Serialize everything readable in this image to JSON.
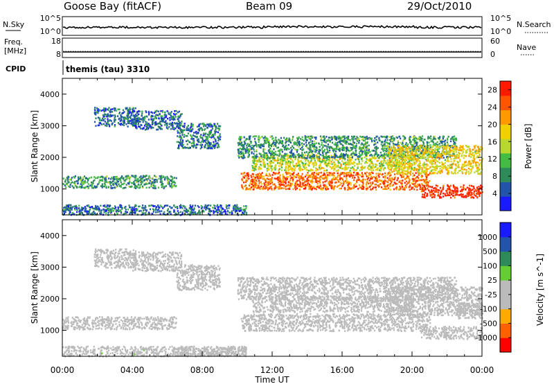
{
  "header": {
    "title": "Goose Bay (fitACF)",
    "beam": "Beam 09",
    "date": "29/Oct/2010"
  },
  "noise_panel": {
    "left_label": "N.Sky",
    "right_label": "N.Search",
    "left_ticks": [
      "10^5",
      "10^0"
    ],
    "right_ticks": [
      "10^5",
      "10^0"
    ]
  },
  "freq_panel": {
    "label_line1": "Freq.",
    "label_line2": "[MHz]",
    "left_ticks": [
      "18",
      "8"
    ],
    "right_label": "Nave",
    "right_ticks": [
      "60",
      "0"
    ]
  },
  "cpid": {
    "label": "CPID",
    "value": "themis (tau) 3310"
  },
  "colors": {
    "power_scale": [
      "#1a1aff",
      "#2255aa",
      "#2f8a5a",
      "#44bb44",
      "#b8d830",
      "#f0d000",
      "#ff9900",
      "#ff5500",
      "#ff1a00"
    ],
    "velocity_scale": [
      "#ff0000",
      "#ff6000",
      "#ffaa00",
      "#bbbbbb",
      "#bbbbbb",
      "#66cc33",
      "#2f8a5a",
      "#2255aa",
      "#1a1aff"
    ],
    "ground_scatter": "#bbbbbb"
  },
  "chart_data": [
    {
      "type": "heatmap",
      "name": "power",
      "ylabel": "Slant Range [km]",
      "xlabel": "Time UT",
      "x_ticks": [
        "00:00",
        "04:00",
        "08:00",
        "12:00",
        "16:00",
        "20:00",
        "00:00"
      ],
      "y_ticks": [
        "1000",
        "2000",
        "3000",
        "4000"
      ],
      "xlim_hours": [
        0,
        24
      ],
      "ylim_km": [
        180,
        4500
      ],
      "colorbar": {
        "label": "Power [dB]",
        "ticks": [
          "4",
          "8",
          "12",
          "16",
          "20",
          "24",
          "28"
        ],
        "range": [
          0,
          30
        ]
      },
      "regions": [
        {
          "t": [
            1.8,
            4.2
          ],
          "r": [
            3000,
            3600
          ],
          "level": 6
        },
        {
          "t": [
            4.0,
            6.8
          ],
          "r": [
            2900,
            3500
          ],
          "level": 6
        },
        {
          "t": [
            6.5,
            9.0
          ],
          "r": [
            2300,
            3100
          ],
          "level": 7
        },
        {
          "t": [
            0.0,
            6.5
          ],
          "r": [
            1050,
            1450
          ],
          "level": 9
        },
        {
          "t": [
            0.0,
            10.5
          ],
          "r": [
            200,
            520
          ],
          "level": 6
        },
        {
          "t": [
            10.2,
            21.0
          ],
          "r": [
            1000,
            1550
          ],
          "level": 24
        },
        {
          "t": [
            10.8,
            20.0
          ],
          "r": [
            1600,
            2100
          ],
          "level": 16
        },
        {
          "t": [
            10.0,
            22.5
          ],
          "r": [
            2000,
            2700
          ],
          "level": 9
        },
        {
          "t": [
            18.5,
            24.0
          ],
          "r": [
            1500,
            2400
          ],
          "level": 18
        },
        {
          "t": [
            20.5,
            24.0
          ],
          "r": [
            750,
            1150
          ],
          "level": 28
        }
      ]
    },
    {
      "type": "heatmap",
      "name": "velocity",
      "ylabel": "Slant Range [km]",
      "xlabel": "Time UT",
      "x_ticks": [
        "00:00",
        "04:00",
        "08:00",
        "12:00",
        "16:00",
        "20:00",
        "00:00"
      ],
      "y_ticks": [
        "1000",
        "2000",
        "3000",
        "4000"
      ],
      "xlim_hours": [
        0,
        24
      ],
      "ylim_km": [
        180,
        4500
      ],
      "colorbar": {
        "label": "Velocity [m s^-1]",
        "ticks": [
          "1000",
          "500",
          "100",
          "25",
          "-25",
          "-100",
          "-500",
          "-1000"
        ],
        "range": [
          -1250,
          1250
        ]
      },
      "regions": [
        {
          "t": [
            1.8,
            4.2
          ],
          "r": [
            3000,
            3600
          ],
          "level": 0
        },
        {
          "t": [
            4.0,
            6.8
          ],
          "r": [
            2900,
            3500
          ],
          "level": 0
        },
        {
          "t": [
            6.5,
            9.0
          ],
          "r": [
            2300,
            3100
          ],
          "level": 0
        },
        {
          "t": [
            0.0,
            6.5
          ],
          "r": [
            1050,
            1450
          ],
          "level": 60
        },
        {
          "t": [
            0.0,
            10.5
          ],
          "r": [
            200,
            520
          ],
          "level": 80
        },
        {
          "t": [
            6.5,
            10.5
          ],
          "r": [
            220,
            480
          ],
          "level": -90
        },
        {
          "t": [
            10.2,
            21.0
          ],
          "r": [
            1000,
            1550
          ],
          "level": 0
        },
        {
          "t": [
            10.8,
            20.0
          ],
          "r": [
            1600,
            2100
          ],
          "level": 0
        },
        {
          "t": [
            10.0,
            22.5
          ],
          "r": [
            2000,
            2700
          ],
          "level": 0
        },
        {
          "t": [
            18.5,
            24.0
          ],
          "r": [
            1500,
            2400
          ],
          "level": 0
        },
        {
          "t": [
            20.5,
            24.0
          ],
          "r": [
            750,
            1150
          ],
          "level": 0
        },
        {
          "t": [
            22.5,
            24.0
          ],
          "r": [
            1400,
            1900
          ],
          "level": 60
        }
      ]
    }
  ]
}
